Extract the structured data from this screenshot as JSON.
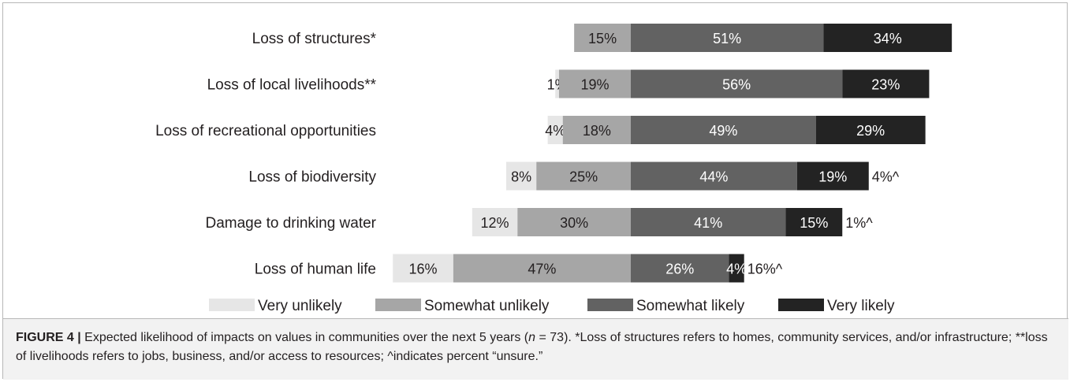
{
  "chart_data": {
    "type": "bar",
    "orientation": "horizontal",
    "stacked": "diverging",
    "categories": [
      "Loss of structures*",
      "Loss of local livelihoods**",
      "Loss of recreational opportunities",
      "Loss of biodiversity",
      "Damage to drinking water",
      "Loss of human life"
    ],
    "series": [
      {
        "name": "Very unlikely",
        "color": "#e6e6e6",
        "values": [
          0,
          1,
          4,
          8,
          12,
          16
        ]
      },
      {
        "name": "Somewhat unlikely",
        "color": "#a6a6a6",
        "values": [
          15,
          19,
          18,
          25,
          30,
          47
        ]
      },
      {
        "name": "Somewhat likely",
        "color": "#626262",
        "values": [
          51,
          56,
          49,
          44,
          41,
          26
        ]
      },
      {
        "name": "Very likely",
        "color": "#232323",
        "values": [
          34,
          23,
          29,
          19,
          15,
          4
        ]
      }
    ],
    "unsure_labels": [
      "",
      "",
      "",
      "4%^",
      "1%^",
      "16%^"
    ],
    "legend_position": "bottom",
    "grid": false
  },
  "caption": {
    "label": "FIGURE 4 |",
    "text_before_n": "Expected likelihood of impacts on values in communities over the next 5 years (",
    "n_symbol": "n",
    "text_after_n": " = 73). *Loss of structures refers to homes, community services, and/or infrastructure; **loss of livelihoods refers to jobs, business, and/or access to resources; ^indicates percent “unsure.”"
  }
}
